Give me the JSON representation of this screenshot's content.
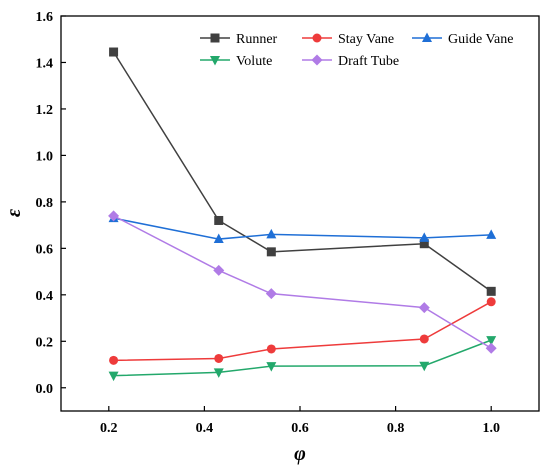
{
  "chart_data": {
    "type": "line",
    "xlabel": "φ",
    "ylabel": "ε",
    "xlim": [
      0.1,
      1.1
    ],
    "ylim": [
      -0.1,
      1.6
    ],
    "xticks": [
      0.2,
      0.4,
      0.6,
      0.8,
      1.0
    ],
    "xtick_labels": [
      "0.2",
      "0.4",
      "0.6",
      "0.8",
      "1.0"
    ],
    "yticks": [
      0.0,
      0.2,
      0.4,
      0.6,
      0.8,
      1.0,
      1.2,
      1.4,
      1.6
    ],
    "ytick_labels": [
      "0.0",
      "0.2",
      "0.4",
      "0.6",
      "0.8",
      "1.0",
      "1.2",
      "1.4",
      "1.6"
    ],
    "grid": false,
    "legend_position": "top-right",
    "x": [
      0.21,
      0.43,
      0.54,
      0.86,
      1.0
    ],
    "series": [
      {
        "name": "Runner",
        "marker": "square",
        "color": "#404040",
        "values": [
          1.445,
          0.72,
          0.585,
          0.62,
          0.415
        ]
      },
      {
        "name": "Stay Vane",
        "marker": "circle",
        "color": "#ee3b3b",
        "values": [
          0.118,
          0.126,
          0.167,
          0.21,
          0.37
        ]
      },
      {
        "name": "Guide Vane",
        "marker": "triangle-up",
        "color": "#1f6fd6",
        "values": [
          0.73,
          0.64,
          0.66,
          0.645,
          0.658
        ]
      },
      {
        "name": "Volute",
        "marker": "triangle-down",
        "color": "#23a86b",
        "values": [
          0.052,
          0.066,
          0.093,
          0.095,
          0.205
        ]
      },
      {
        "name": "Draft Tube",
        "marker": "diamond",
        "color": "#b07be6",
        "values": [
          0.74,
          0.505,
          0.405,
          0.345,
          0.17
        ]
      }
    ]
  }
}
